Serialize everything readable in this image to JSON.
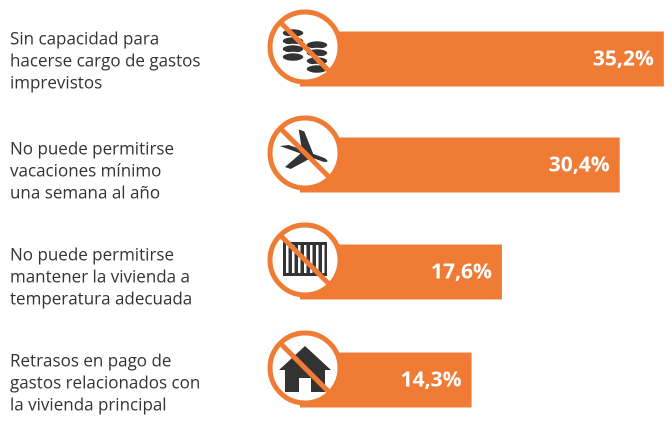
{
  "chart_data": {
    "type": "bar",
    "orientation": "horizontal",
    "categories": [
      [
        "Sin capacidad para",
        "hacerse cargo de gastos",
        "imprevistos"
      ],
      [
        "No puede permitirse",
        "vacaciones mínimo",
        "una semana al año"
      ],
      [
        "No puede permitirse",
        "mantener la vivienda a",
        "temperatura adecuada"
      ],
      [
        "Retrasos en pago de",
        "gastos relacionados con",
        "la vivienda principal"
      ]
    ],
    "values": [
      35.2,
      30.4,
      17.6,
      14.3
    ],
    "value_labels": [
      "35,2%",
      "30,4%",
      "17,6%",
      "14,3%"
    ],
    "color": "#f07b35"
  }
}
